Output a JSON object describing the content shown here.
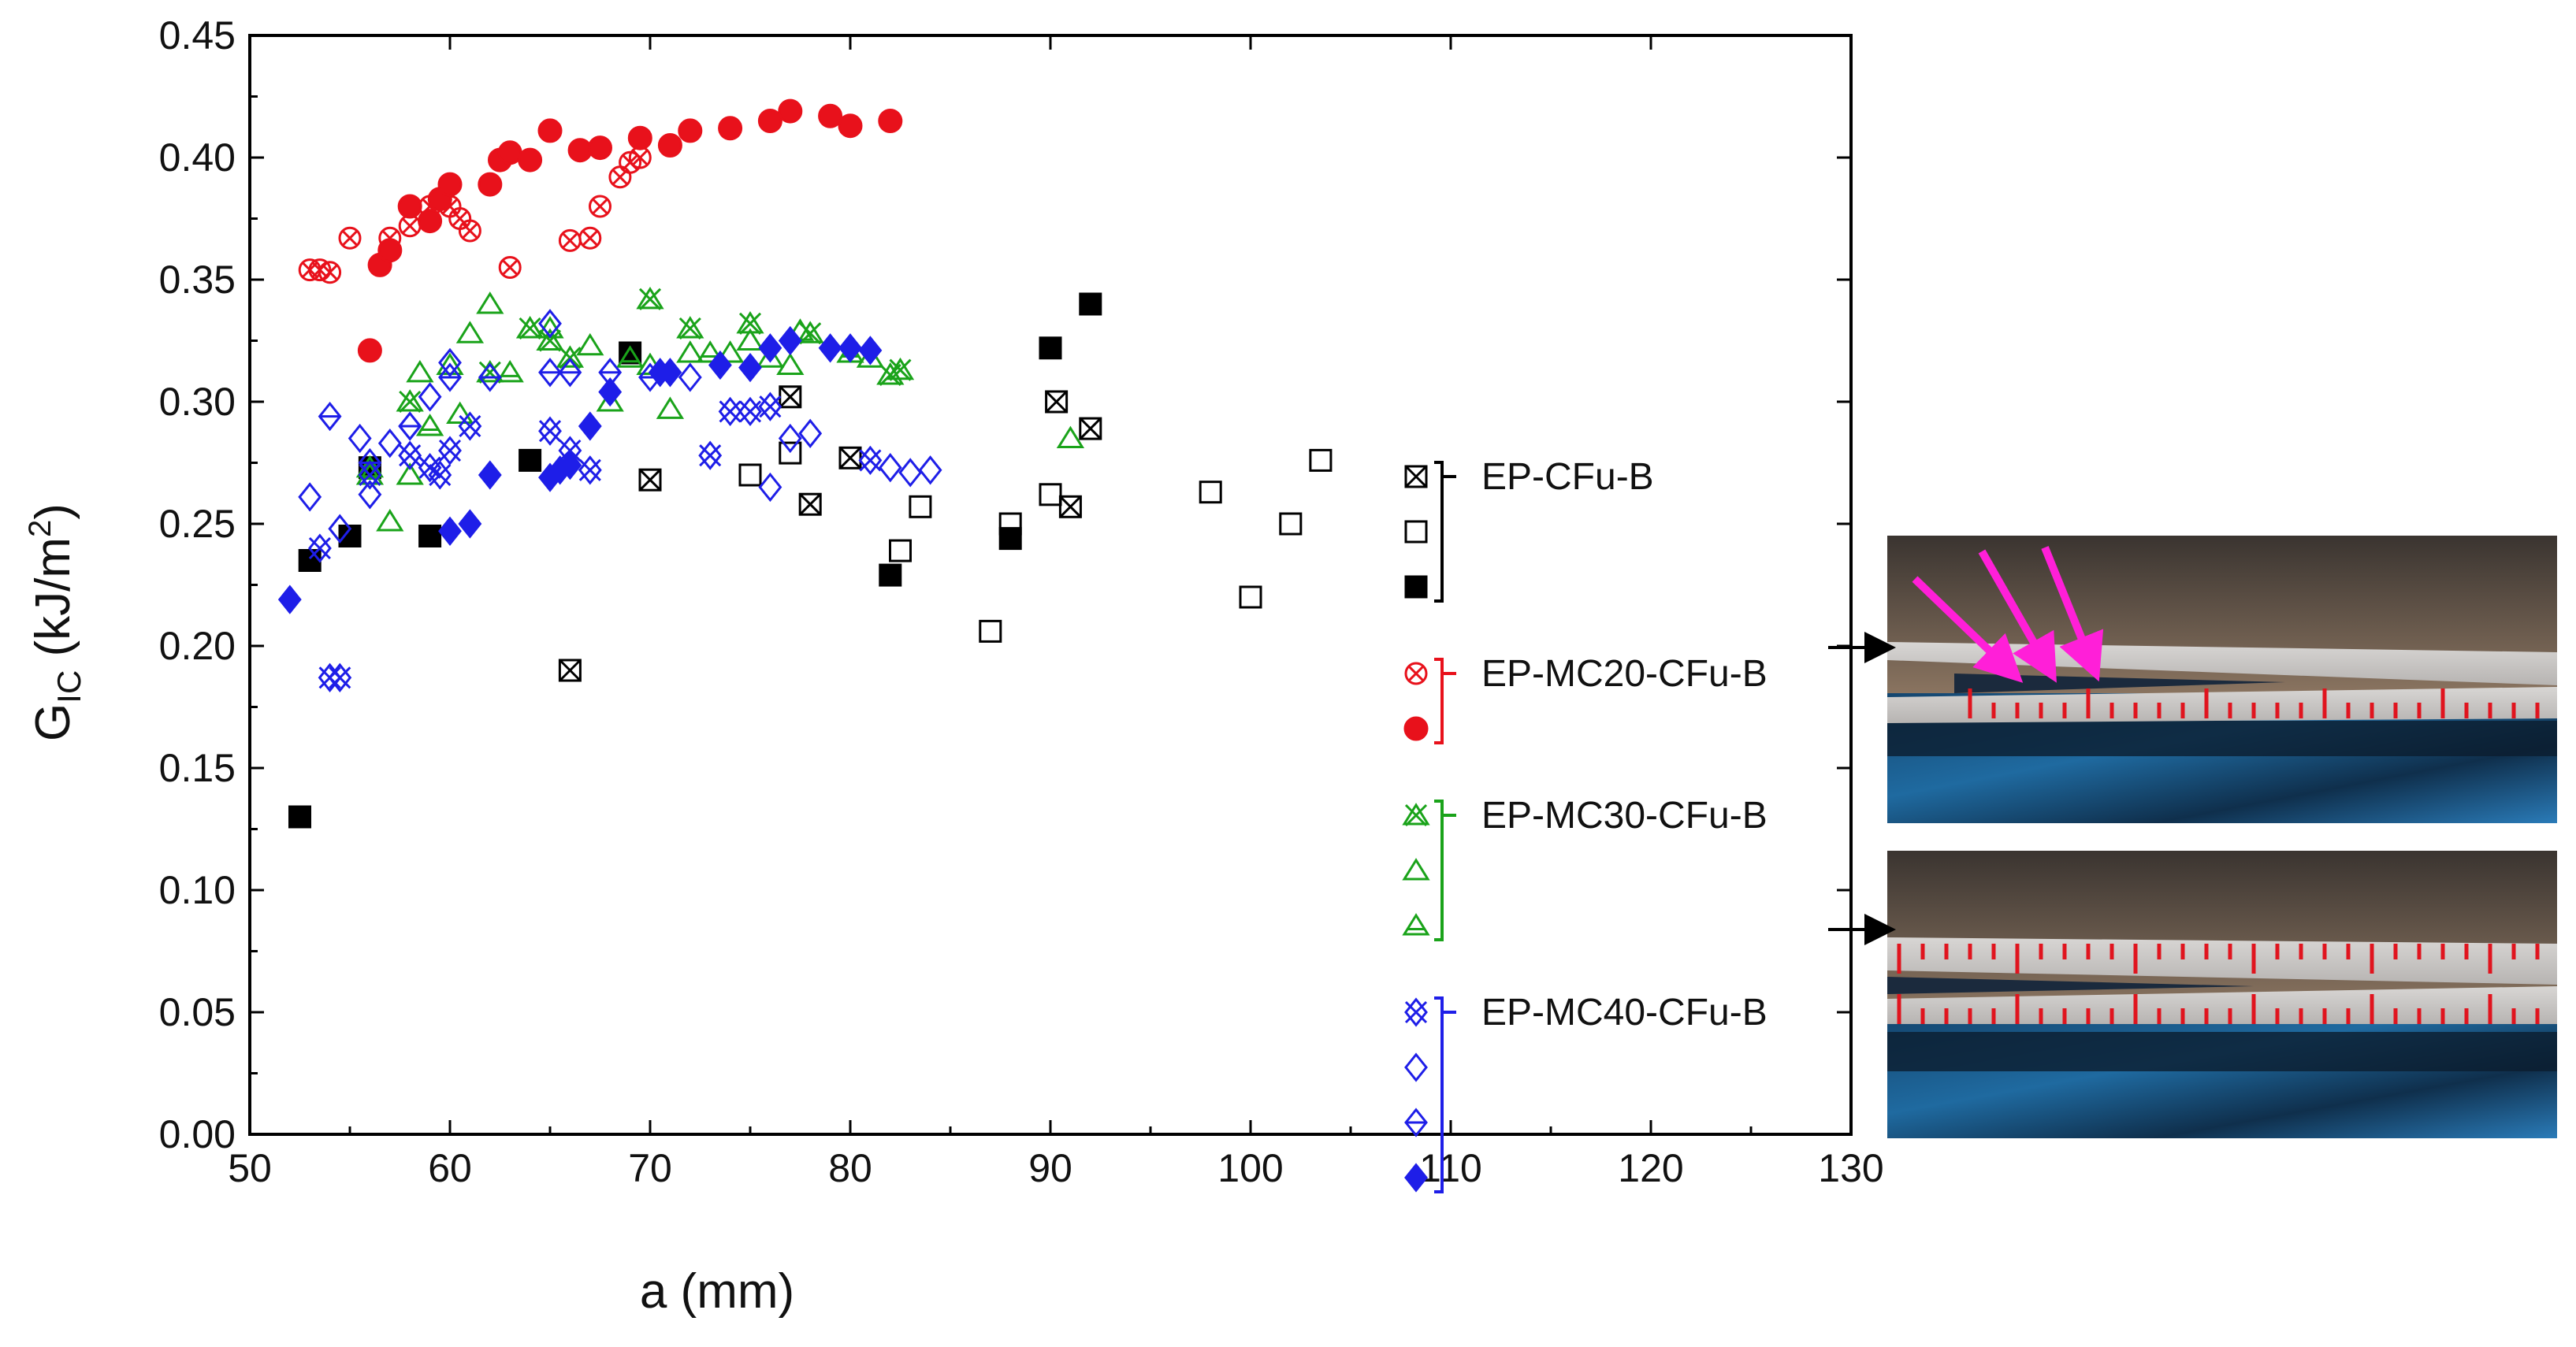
{
  "chart_data": {
    "type": "scatter",
    "title": "",
    "xlabel": "a (mm)",
    "ylabel_main": "G",
    "ylabel_sub": "IC",
    "ylabel_units_pre": " (kJ/m",
    "ylabel_units_sup": "2",
    "ylabel_units_post": ")",
    "xlim": [
      50,
      130
    ],
    "ylim": [
      0,
      0.45
    ],
    "xticks": [
      50,
      60,
      70,
      80,
      90,
      100,
      110,
      120,
      130
    ],
    "yticks": [
      "0.00",
      "0.05",
      "0.10",
      "0.15",
      "0.20",
      "0.25",
      "0.30",
      "0.35",
      "0.40",
      "0.45"
    ],
    "legend_position": "right",
    "groups": [
      {
        "label": "EP-CFu-B",
        "color": "#000000",
        "series": [
          {
            "marker": "square-x",
            "points": [
              [
                66,
                0.19
              ],
              [
                70,
                0.268
              ],
              [
                77,
                0.302
              ],
              [
                78,
                0.258
              ],
              [
                80,
                0.277
              ],
              [
                90.3,
                0.3
              ],
              [
                91,
                0.257
              ],
              [
                92,
                0.289
              ]
            ]
          },
          {
            "marker": "square-open",
            "points": [
              [
                75,
                0.27
              ],
              [
                77,
                0.279
              ],
              [
                82.5,
                0.239
              ],
              [
                83.5,
                0.257
              ],
              [
                87,
                0.206
              ],
              [
                88,
                0.25
              ],
              [
                90,
                0.262
              ],
              [
                98,
                0.263
              ],
              [
                100,
                0.22
              ],
              [
                102,
                0.25
              ],
              [
                103.5,
                0.276
              ]
            ]
          },
          {
            "marker": "square-filled",
            "points": [
              [
                52.5,
                0.13
              ],
              [
                53,
                0.235
              ],
              [
                55,
                0.245
              ],
              [
                56,
                0.273
              ],
              [
                59,
                0.245
              ],
              [
                64,
                0.276
              ],
              [
                69,
                0.32
              ],
              [
                82,
                0.229
              ],
              [
                88,
                0.244
              ],
              [
                90,
                0.322
              ],
              [
                92,
                0.34
              ]
            ]
          }
        ]
      },
      {
        "label": "EP-MC20-CFu-B",
        "color": "#e8111b",
        "series": [
          {
            "marker": "circle-x",
            "points": [
              [
                53,
                0.354
              ],
              [
                53.5,
                0.354
              ],
              [
                54,
                0.353
              ],
              [
                55,
                0.367
              ],
              [
                57,
                0.367
              ],
              [
                58,
                0.372
              ],
              [
                59,
                0.38
              ],
              [
                60,
                0.38
              ],
              [
                60.5,
                0.375
              ],
              [
                61,
                0.37
              ],
              [
                63,
                0.355
              ],
              [
                66,
                0.366
              ],
              [
                67,
                0.367
              ],
              [
                67.5,
                0.38
              ],
              [
                68.5,
                0.392
              ],
              [
                69,
                0.398
              ],
              [
                69.5,
                0.4
              ]
            ]
          },
          {
            "marker": "circle-filled",
            "points": [
              [
                56,
                0.321
              ],
              [
                56.5,
                0.356
              ],
              [
                57,
                0.362
              ],
              [
                58,
                0.38
              ],
              [
                59,
                0.374
              ],
              [
                59.5,
                0.383
              ],
              [
                60,
                0.389
              ],
              [
                62,
                0.389
              ],
              [
                62.5,
                0.399
              ],
              [
                63,
                0.402
              ],
              [
                64,
                0.399
              ],
              [
                65,
                0.411
              ],
              [
                66.5,
                0.403
              ],
              [
                67.5,
                0.404
              ],
              [
                69.5,
                0.408
              ],
              [
                71,
                0.405
              ],
              [
                72,
                0.411
              ],
              [
                74,
                0.412
              ],
              [
                76,
                0.415
              ],
              [
                77,
                0.419
              ],
              [
                79,
                0.417
              ],
              [
                80,
                0.413
              ],
              [
                82,
                0.415
              ]
            ]
          }
        ]
      },
      {
        "label": "EP-MC30-CFu-B",
        "color": "#1aa31a",
        "series": [
          {
            "marker": "x-triangle",
            "points": [
              [
                58,
                0.3
              ],
              [
                62,
                0.312
              ],
              [
                64,
                0.33
              ],
              [
                65,
                0.325
              ],
              [
                66,
                0.318
              ],
              [
                70,
                0.342
              ],
              [
                72,
                0.33
              ],
              [
                75,
                0.332
              ],
              [
                78,
                0.328
              ],
              [
                82,
                0.311
              ],
              [
                82.5,
                0.313
              ]
            ]
          },
          {
            "marker": "triangle-open",
            "points": [
              [
                56,
                0.273
              ],
              [
                57,
                0.251
              ],
              [
                58,
                0.27
              ],
              [
                58.5,
                0.312
              ],
              [
                60,
                0.315
              ],
              [
                60.5,
                0.295
              ],
              [
                61,
                0.328
              ],
              [
                62,
                0.34
              ],
              [
                64,
                0.33
              ],
              [
                65,
                0.33
              ],
              [
                67,
                0.323
              ],
              [
                68,
                0.3
              ],
              [
                70,
                0.315
              ],
              [
                71,
                0.297
              ],
              [
                72,
                0.32
              ],
              [
                74,
                0.32
              ],
              [
                75,
                0.325
              ],
              [
                76,
                0.318
              ],
              [
                77,
                0.315
              ],
              [
                77.5,
                0.329
              ],
              [
                81,
                0.318
              ],
              [
                91,
                0.285
              ]
            ]
          },
          {
            "marker": "triangle-half",
            "points": [
              [
                56,
                0.27
              ],
              [
                59,
                0.29
              ],
              [
                63,
                0.312
              ],
              [
                69,
                0.318
              ],
              [
                73,
                0.32
              ],
              [
                80,
                0.32
              ]
            ]
          }
        ]
      },
      {
        "label": "EP-MC40-CFu-B",
        "color": "#1e1ee8",
        "series": [
          {
            "marker": "x-diamond",
            "points": [
              [
                54,
                0.187
              ],
              [
                54.5,
                0.187
              ],
              [
                53.5,
                0.24
              ],
              [
                56,
                0.27
              ],
              [
                58,
                0.278
              ],
              [
                59,
                0.273
              ],
              [
                59.5,
                0.27
              ],
              [
                60,
                0.28
              ],
              [
                61,
                0.29
              ],
              [
                65,
                0.288
              ],
              [
                66,
                0.28
              ],
              [
                67,
                0.272
              ],
              [
                73,
                0.278
              ],
              [
                74,
                0.296
              ],
              [
                75,
                0.296
              ],
              [
                76,
                0.298
              ],
              [
                81,
                0.276
              ]
            ]
          },
          {
            "marker": "diamond-open",
            "points": [
              [
                53,
                0.261
              ],
              [
                54.5,
                0.248
              ],
              [
                55.5,
                0.285
              ],
              [
                56,
                0.262
              ],
              [
                57,
                0.283
              ],
              [
                58,
                0.29
              ],
              [
                59,
                0.302
              ],
              [
                60,
                0.316
              ],
              [
                65,
                0.332
              ],
              [
                72,
                0.31
              ],
              [
                76,
                0.265
              ],
              [
                77,
                0.285
              ],
              [
                78,
                0.287
              ],
              [
                82,
                0.273
              ],
              [
                83,
                0.271
              ],
              [
                84,
                0.272
              ]
            ]
          },
          {
            "marker": "diamond-half",
            "points": [
              [
                54,
                0.294
              ],
              [
                56,
                0.275
              ],
              [
                58,
                0.29
              ],
              [
                60,
                0.31
              ],
              [
                62,
                0.31
              ],
              [
                65,
                0.312
              ],
              [
                66,
                0.312
              ],
              [
                68,
                0.312
              ],
              [
                70,
                0.31
              ]
            ]
          },
          {
            "marker": "diamond-filled",
            "points": [
              [
                52,
                0.219
              ],
              [
                60,
                0.247
              ],
              [
                61,
                0.25
              ],
              [
                62,
                0.27
              ],
              [
                65,
                0.269
              ],
              [
                65.5,
                0.272
              ],
              [
                66,
                0.274
              ],
              [
                67,
                0.29
              ],
              [
                68,
                0.304
              ],
              [
                70.5,
                0.312
              ],
              [
                71,
                0.312
              ],
              [
                73.5,
                0.315
              ],
              [
                75,
                0.314
              ],
              [
                76,
                0.322
              ],
              [
                77,
                0.325
              ],
              [
                79,
                0.322
              ],
              [
                80,
                0.322
              ],
              [
                81,
                0.321
              ]
            ]
          }
        ]
      }
    ],
    "photos": [
      {
        "name": "crack-photo-top",
        "arrows": "magenta"
      },
      {
        "name": "crack-photo-bottom",
        "arrows": "none"
      }
    ]
  }
}
